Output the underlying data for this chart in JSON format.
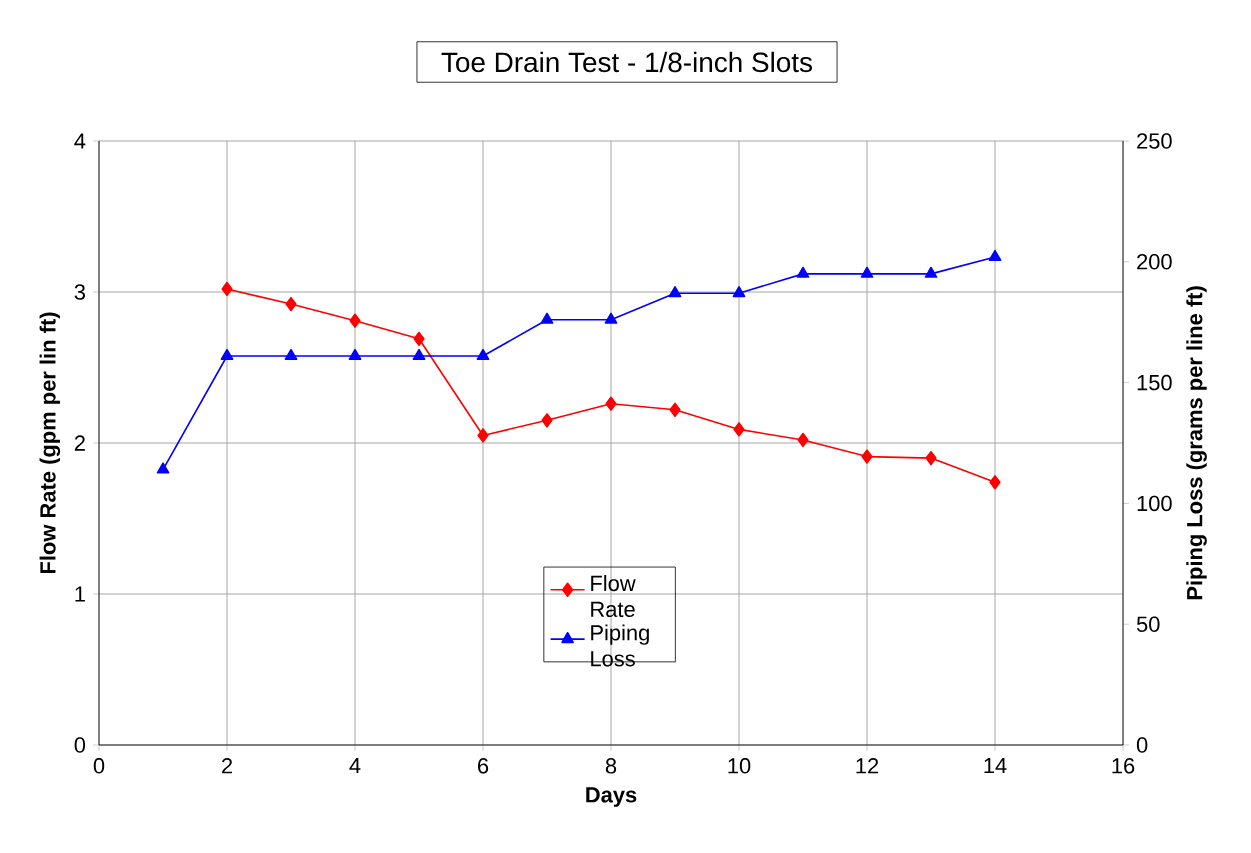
{
  "chart_data": {
    "type": "line",
    "title": "Toe Drain Test - 1/8-inch Slots",
    "xlabel": "Days",
    "ylabel": "Flow Rate (gpm per lin ft)",
    "y2label": "Piping Loss (grams per line ft)",
    "series": [
      {
        "name": "Flow Rate",
        "color": "#ff0000",
        "marker": "diamond",
        "x": [
          2,
          3,
          4,
          5,
          6,
          7,
          8,
          9,
          10,
          11,
          12,
          13,
          14
        ],
        "values": [
          3.02,
          2.92,
          2.81,
          2.69,
          2.05,
          2.15,
          2.26,
          2.22,
          2.09,
          2.02,
          1.91,
          1.9,
          1.74
        ]
      },
      {
        "name": "Piping Loss",
        "color": "#0000ff",
        "marker": "triangle",
        "axis": "y2",
        "x": [
          1,
          2,
          3,
          4,
          5,
          6,
          7,
          8,
          9,
          10,
          11,
          12,
          13,
          14
        ],
        "values": [
          114,
          161,
          161,
          161,
          161,
          161,
          176,
          176,
          187,
          187,
          195,
          195,
          195,
          202
        ]
      }
    ],
    "xlim": [
      0,
      16
    ],
    "xticks": [
      0,
      2,
      4,
      6,
      8,
      10,
      12,
      14,
      16
    ],
    "ylim": [
      0,
      4
    ],
    "yticks": [
      0,
      1,
      2,
      3,
      4
    ],
    "y2lim": [
      0,
      250
    ],
    "y2ticks": [
      0,
      50,
      100,
      150,
      200,
      250
    ],
    "grid": true,
    "legend": "bottom",
    "line_style": "solid"
  }
}
